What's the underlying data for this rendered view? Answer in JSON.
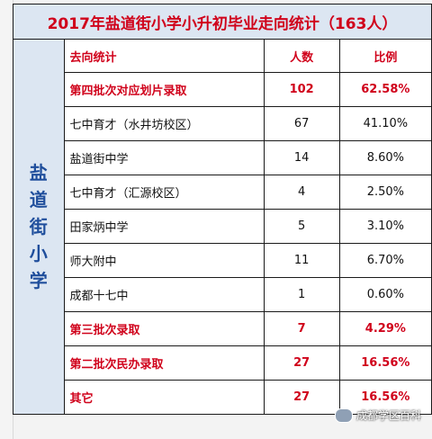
{
  "title": "2017年盐道街小学小升初毕业走向统计（163人）",
  "school": "盐道街小学",
  "headers": {
    "destination": "去向统计",
    "count": "人数",
    "ratio": "比例"
  },
  "rows": [
    {
      "name": "第四批次对应划片录取",
      "count": "102",
      "ratio": "62.58%",
      "highlight": true
    },
    {
      "name": "七中育才（水井坊校区）",
      "count": "67",
      "ratio": "41.10%",
      "highlight": false
    },
    {
      "name": "盐道街中学",
      "count": "14",
      "ratio": "8.60%",
      "highlight": false
    },
    {
      "name": "七中育才（汇源校区）",
      "count": "4",
      "ratio": "2.50%",
      "highlight": false
    },
    {
      "name": "田家炳中学",
      "count": "5",
      "ratio": "3.10%",
      "highlight": false
    },
    {
      "name": "师大附中",
      "count": "11",
      "ratio": "6.70%",
      "highlight": false
    },
    {
      "name": "成都十七中",
      "count": "1",
      "ratio": "0.60%",
      "highlight": false
    },
    {
      "name": "第三批次录取",
      "count": "7",
      "ratio": "4.29%",
      "highlight": true
    },
    {
      "name": "第二批次民办录取",
      "count": "27",
      "ratio": "16.56%",
      "highlight": true
    },
    {
      "name": "其它",
      "count": "27",
      "ratio": "16.56%",
      "highlight": true
    }
  ],
  "watermark": "成都学区百科",
  "colors": {
    "title_bg": "#dce6f2",
    "highlight_text": "#d0021b",
    "school_text": "#1f4e9c"
  }
}
